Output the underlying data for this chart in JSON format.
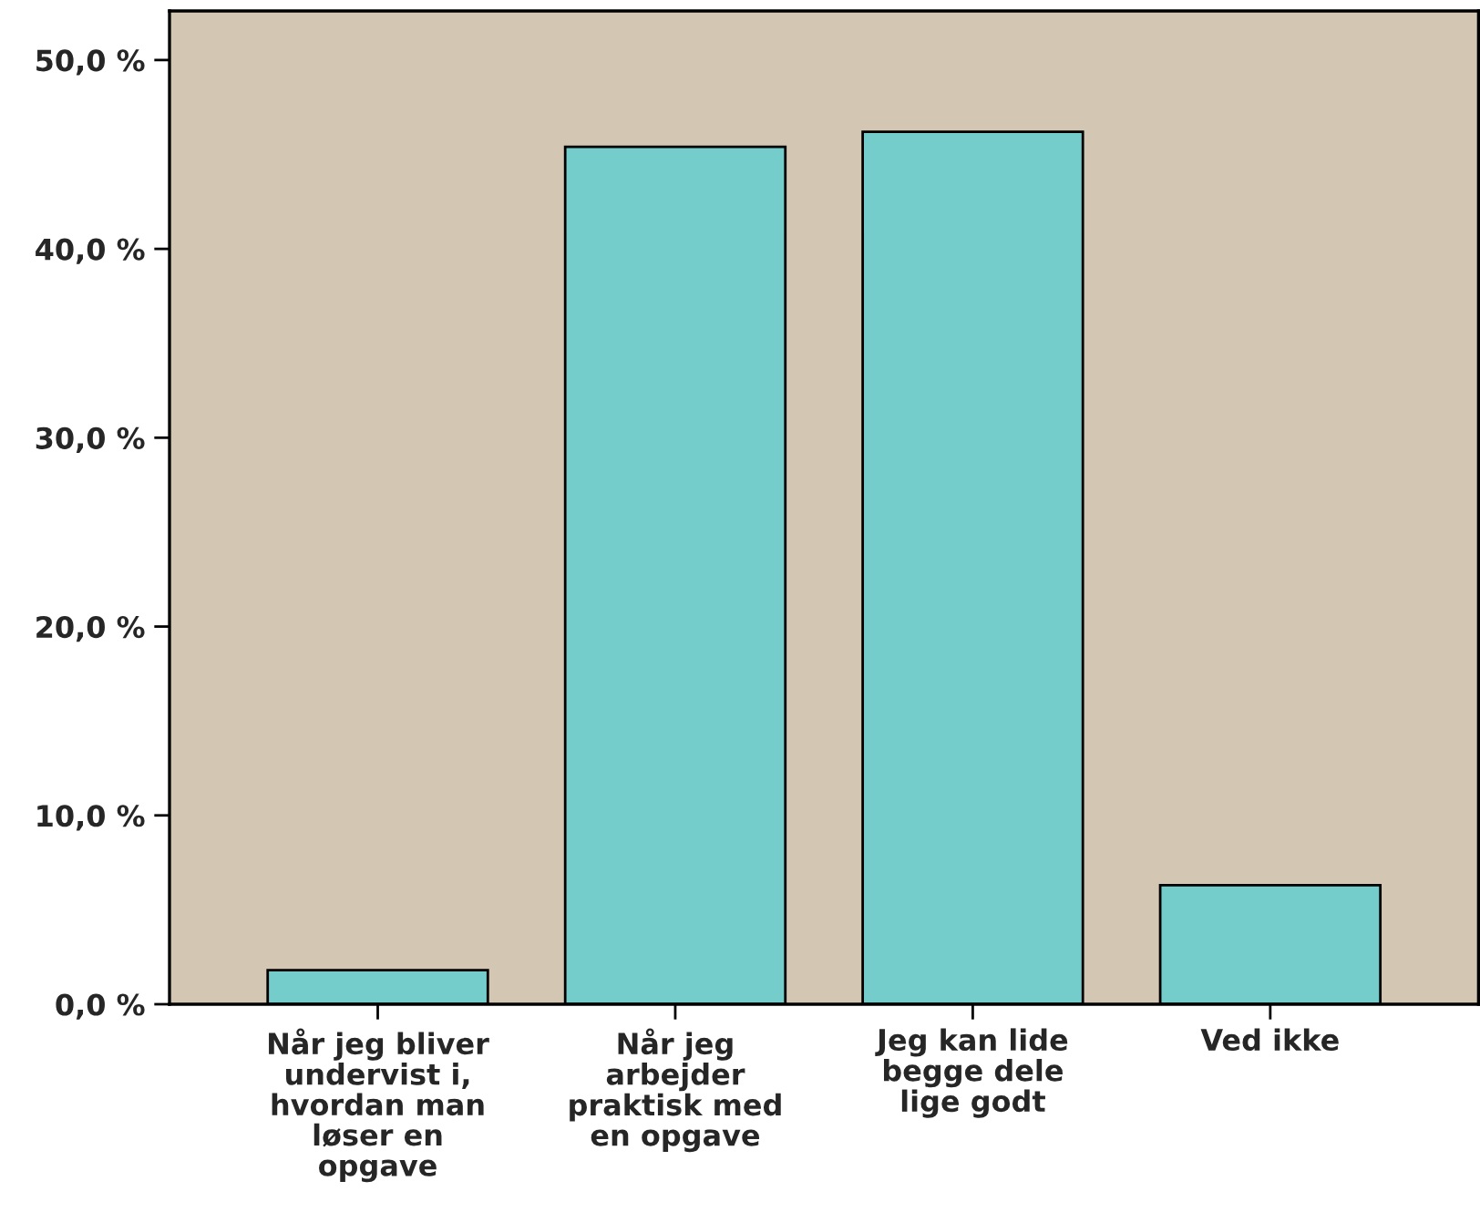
{
  "chart_data": {
    "type": "bar",
    "categories": [
      "Når jeg bliver\nundervist i,\nhvordan man\nløser en\nopgave",
      "Når jeg\narbejder\npraktisk med\nen opgave",
      "Jeg kan lide\nbegge dele\nlige godt",
      "Ved ikke"
    ],
    "values": [
      1.8,
      45.4,
      46.2,
      6.3
    ],
    "color": "#74cccb",
    "ylim": [
      0,
      52.6
    ],
    "yticks": [
      {
        "value": 0,
        "label": "0,0 %"
      },
      {
        "value": 10,
        "label": "10,0 %"
      },
      {
        "value": 20,
        "label": "20,0 %"
      },
      {
        "value": 30,
        "label": "30,0 %"
      },
      {
        "value": 40,
        "label": "40,0 %"
      },
      {
        "value": 50,
        "label": "50,0 %"
      }
    ],
    "grid": false
  }
}
